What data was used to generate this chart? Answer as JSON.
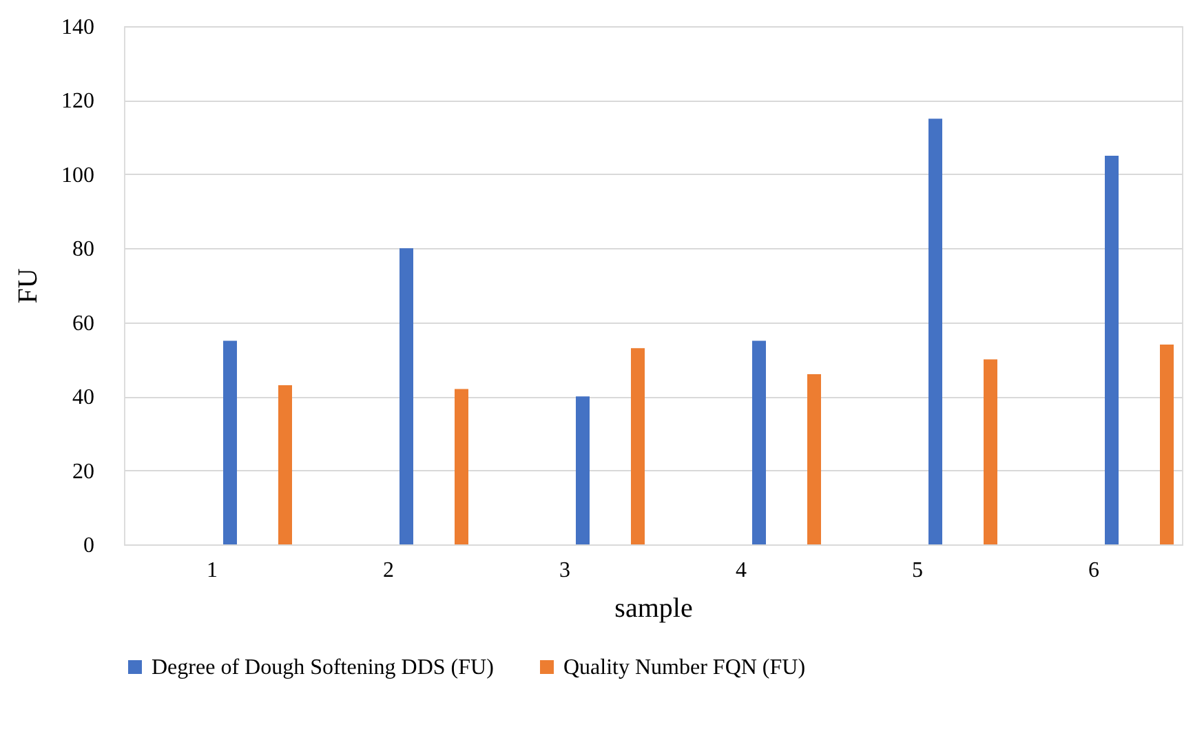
{
  "chart_data": {
    "type": "bar",
    "xlabel": "sample",
    "ylabel": "FU",
    "categories": [
      "1",
      "2",
      "3",
      "4",
      "5",
      "6"
    ],
    "series": [
      {
        "name": "Degree of Dough Softening DDS (FU)",
        "color": "#4472c4",
        "values": [
          55,
          80,
          40,
          55,
          115,
          105
        ]
      },
      {
        "name": "Quality Number FQN (FU)",
        "color": "#ed7d31",
        "values": [
          43,
          42,
          53,
          46,
          50,
          54
        ]
      }
    ],
    "ylim": [
      0,
      140
    ],
    "yticks": [
      0,
      20,
      40,
      60,
      80,
      100,
      120,
      140
    ],
    "grid": "y",
    "legend": "bottom"
  }
}
